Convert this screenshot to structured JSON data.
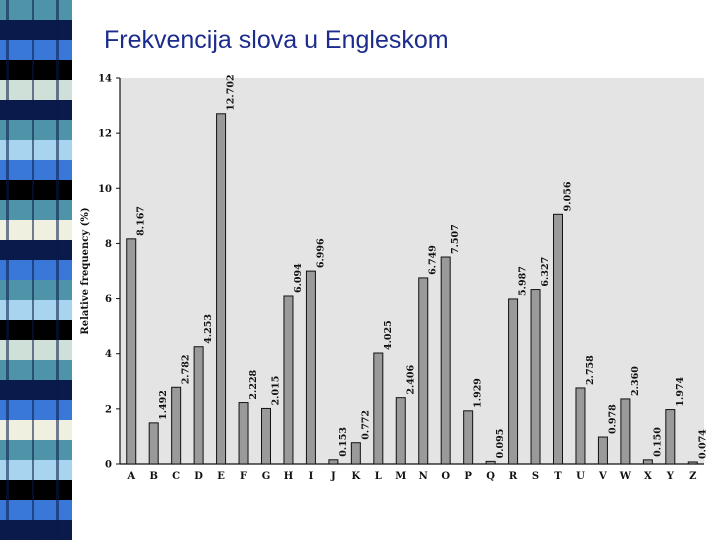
{
  "slide": {
    "title": "Frekvencija slova u Engleskom",
    "strip_colors": [
      "#4f93a8",
      "#0a1a4a",
      "#3a78d8",
      "#000000",
      "#cfe0d8",
      "#a8d4f0",
      "#f0f0e0"
    ]
  },
  "chart_data": {
    "type": "bar",
    "title": "",
    "xlabel": "",
    "ylabel": "Relative frequency (%)",
    "ylim": [
      0,
      14
    ],
    "yticks": [
      0,
      2,
      4,
      6,
      8,
      10,
      12,
      14
    ],
    "grid": false,
    "legend": "none",
    "bar_color": "#9a9a9a",
    "plot_background": "#e4e4e4",
    "categories": [
      "A",
      "B",
      "C",
      "D",
      "E",
      "F",
      "G",
      "H",
      "I",
      "J",
      "K",
      "L",
      "M",
      "N",
      "O",
      "P",
      "Q",
      "R",
      "S",
      "T",
      "U",
      "V",
      "W",
      "X",
      "Y",
      "Z"
    ],
    "values": [
      8.167,
      1.492,
      2.782,
      4.253,
      12.702,
      2.228,
      2.015,
      6.094,
      6.996,
      0.153,
      0.772,
      4.025,
      2.406,
      6.749,
      7.507,
      1.929,
      0.095,
      5.987,
      6.327,
      9.056,
      2.758,
      0.978,
      2.36,
      0.15,
      1.974,
      0.074
    ],
    "value_labels": [
      "8.167",
      "1.492",
      "2.782",
      "4.253",
      "12.702",
      "2.228",
      "2.015",
      "6.094",
      "6.996",
      "0.153",
      "0.772",
      "4.025",
      "2.406",
      "6.749",
      "7.507",
      "1.929",
      "0.095",
      "5.987",
      "6.327",
      "9.056",
      "2.758",
      "0.978",
      "2.360",
      "0.150",
      "1.974",
      "0.074"
    ]
  }
}
